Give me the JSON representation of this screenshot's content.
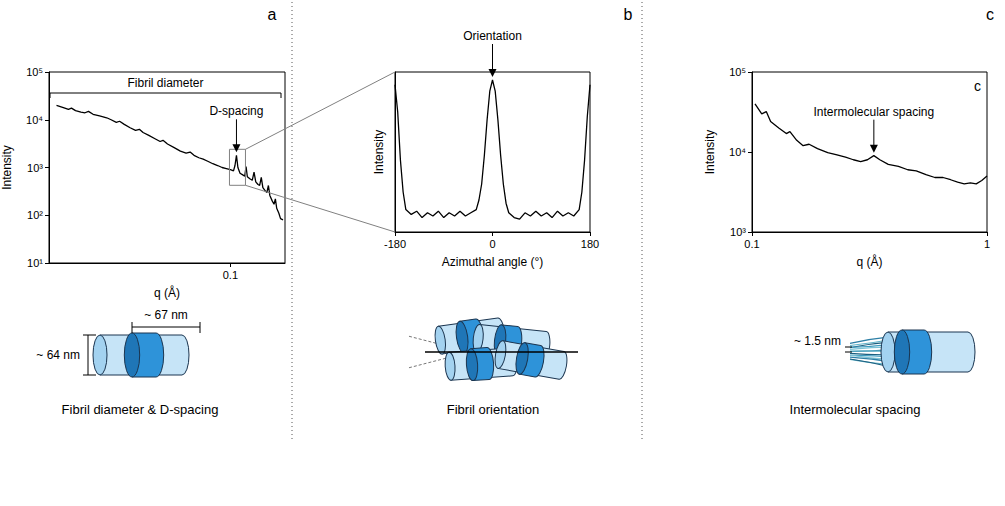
{
  "chart_data": [
    {
      "type": "line",
      "panel": "a",
      "x_label": "q (Å)",
      "y_label": "Intensity",
      "log": true,
      "grid": false,
      "color": "#000000",
      "xlim": [
        0.01,
        0.2
      ],
      "xticks": [
        0.1
      ],
      "ylim": [
        10,
        100000
      ],
      "yticks": [
        {
          "value": 10,
          "label": "10¹"
        },
        {
          "value": 100,
          "label": "10²"
        },
        {
          "value": 1000,
          "label": "10³"
        },
        {
          "value": 10000,
          "label": "10⁴"
        },
        {
          "value": 100000,
          "label": "10⁵"
        }
      ],
      "x": [
        0.011,
        0.012,
        0.0128,
        0.0133,
        0.014,
        0.015,
        0.0158,
        0.0165,
        0.0175,
        0.019,
        0.0208,
        0.022,
        0.0235,
        0.0245,
        0.026,
        0.028,
        0.03,
        0.0315,
        0.033,
        0.0355,
        0.0384,
        0.041,
        0.0425,
        0.045,
        0.049,
        0.053,
        0.057,
        0.06,
        0.063,
        0.067,
        0.0708,
        0.075,
        0.08,
        0.085,
        0.09,
        0.095,
        0.1,
        0.104,
        0.106,
        0.108,
        0.11,
        0.113,
        0.117,
        0.12,
        0.122,
        0.124,
        0.128,
        0.132,
        0.135,
        0.138,
        0.142,
        0.145,
        0.148,
        0.151,
        0.155,
        0.159,
        0.162,
        0.165,
        0.17,
        0.174,
        0.177,
        0.18,
        0.185,
        0.189,
        0.195
      ],
      "values": [
        20000,
        18000,
        16500,
        17500,
        15500,
        14500,
        14000,
        15000,
        13000,
        12000,
        11000,
        10000,
        8800,
        9300,
        8000,
        6800,
        6000,
        6300,
        5400,
        4700,
        4000,
        3500,
        3700,
        3100,
        2600,
        2200,
        2000,
        2100,
        1800,
        1600,
        1500,
        1350,
        1200,
        1100,
        1000,
        950,
        900,
        850,
        1100,
        1800,
        1000,
        760,
        700,
        660,
        1050,
        640,
        580,
        540,
        800,
        500,
        440,
        420,
        620,
        380,
        330,
        300,
        420,
        260,
        200,
        170,
        220,
        140,
        110,
        85,
        80
      ],
      "annotations": [
        {
          "text": "Fibril diameter"
        },
        {
          "text": "D-spacing",
          "x": 0.108,
          "y": 1800
        }
      ]
    },
    {
      "type": "line",
      "panel": "b",
      "x_label": "Azimuthal angle (°)",
      "y_label": "Intensity",
      "grid": false,
      "color": "#000000",
      "tick_labels": "x",
      "xlim": [
        -180,
        180
      ],
      "xticks": [
        -180,
        0,
        180
      ],
      "ylim": [
        0,
        100
      ],
      "x": [
        -180,
        -175,
        -170,
        -165,
        -160,
        -150,
        -140,
        -130,
        -120,
        -110,
        -100,
        -90,
        -80,
        -70,
        -60,
        -50,
        -40,
        -30,
        -25,
        -20,
        -15,
        -10,
        -5,
        0,
        5,
        10,
        15,
        20,
        25,
        30,
        40,
        50,
        60,
        70,
        80,
        90,
        100,
        110,
        120,
        130,
        140,
        150,
        160,
        165,
        170,
        175,
        180
      ],
      "values": [
        92,
        75,
        45,
        25,
        14,
        11,
        13,
        9,
        12,
        10,
        13,
        9,
        12,
        10,
        13,
        10,
        12,
        14,
        20,
        30,
        48,
        70,
        88,
        95,
        88,
        70,
        48,
        30,
        18,
        12,
        9,
        8,
        12,
        10,
        13,
        10,
        12,
        9,
        13,
        10,
        12,
        10,
        14,
        25,
        45,
        72,
        92
      ],
      "annotations": [
        {
          "text": "Orientation",
          "x": 0,
          "y": 95
        }
      ]
    },
    {
      "type": "line",
      "panel": "c",
      "inset_label": "c",
      "x_label": "q (Å)",
      "y_label": "Intensity",
      "log": true,
      "grid": false,
      "color": "#000000",
      "xlim": [
        0.1,
        1
      ],
      "xticks": [
        0.1,
        1
      ],
      "ylim": [
        1000,
        100000
      ],
      "yticks": [
        {
          "value": 1000,
          "label": "10³"
        },
        {
          "value": 10000,
          "label": "10⁴"
        },
        {
          "value": 100000,
          "label": "10⁵"
        }
      ],
      "x": [
        0.103,
        0.11,
        0.115,
        0.12,
        0.13,
        0.14,
        0.145,
        0.155,
        0.165,
        0.175,
        0.19,
        0.21,
        0.23,
        0.25,
        0.27,
        0.29,
        0.31,
        0.33,
        0.35,
        0.38,
        0.42,
        0.46,
        0.5,
        0.55,
        0.6,
        0.65,
        0.7,
        0.75,
        0.8,
        0.85,
        0.9,
        0.95,
        1
      ],
      "values": [
        40000,
        30000,
        32000,
        24000,
        20000,
        17000,
        18000,
        14000,
        12000,
        12500,
        11000,
        9800,
        9200,
        8600,
        8000,
        7600,
        8000,
        9000,
        8000,
        7000,
        6600,
        6000,
        5800,
        5200,
        4800,
        4800,
        4500,
        4200,
        4000,
        4100,
        4000,
        4400,
        5000
      ],
      "annotations": [
        {
          "text": "Intermolecular spacing",
          "x": 0.33,
          "y": 9000
        }
      ]
    }
  ],
  "schematics": [
    {
      "caption": "Fibril diameter & D-spacing",
      "labels": [
        "~ 67 nm",
        "~ 64 nm"
      ]
    },
    {
      "caption": "Fibril orientation"
    },
    {
      "caption": "Intermolecular spacing",
      "labels": [
        "~ 1.5 nm"
      ]
    }
  ]
}
